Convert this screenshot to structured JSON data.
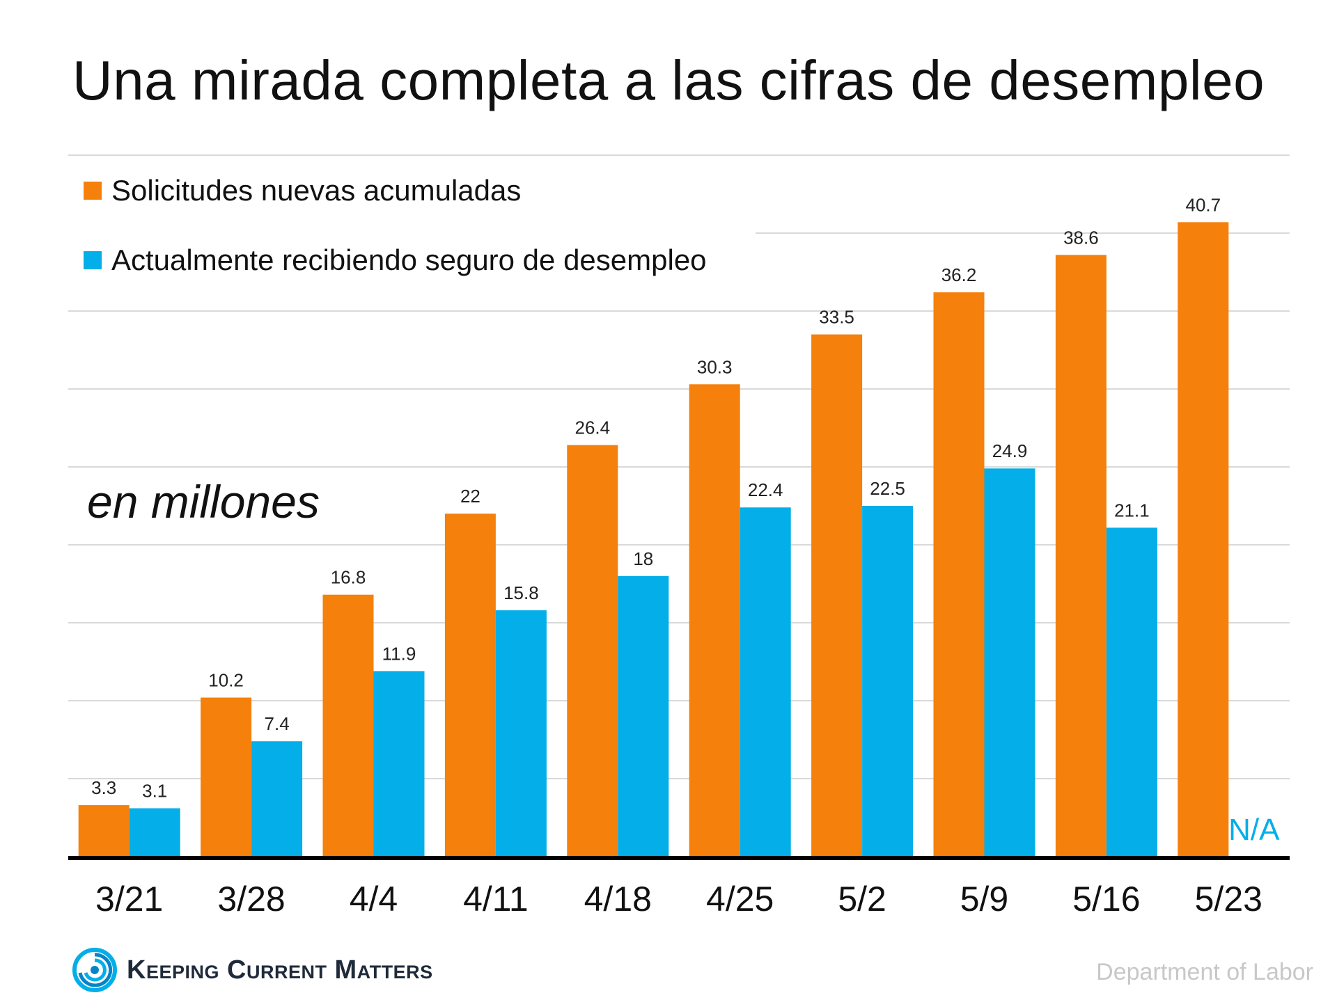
{
  "chart_data": {
    "type": "bar",
    "title": "Una mirada completa a las cifras de desempleo",
    "unit_label": "en millones",
    "categories": [
      "3/21",
      "3/28",
      "4/4",
      "4/11",
      "4/18",
      "4/25",
      "5/2",
      "5/9",
      "5/16",
      "5/23"
    ],
    "series": [
      {
        "name": "Solicitudes nuevas acumuladas",
        "color": "#f5800b",
        "values": [
          3.3,
          10.2,
          16.8,
          22,
          26.4,
          30.3,
          33.5,
          36.2,
          38.6,
          40.7
        ],
        "labels": [
          "3.3",
          "10.2",
          "16.8",
          "22",
          "26.4",
          "30.3",
          "33.5",
          "36.2",
          "38.6",
          "40.7"
        ]
      },
      {
        "name": "Actualmente recibiendo seguro de desempleo",
        "color": "#04aee9",
        "values": [
          3.1,
          7.4,
          11.9,
          15.8,
          18,
          22.4,
          22.5,
          24.9,
          21.1,
          null
        ],
        "labels": [
          "3.1",
          "7.4",
          "11.9",
          "15.8",
          "18",
          "22.4",
          "22.5",
          "24.9",
          "21.1",
          "N/A"
        ]
      }
    ],
    "ylim": [
      0,
      45
    ],
    "grid": true,
    "legend_position": "top-left"
  },
  "footer": {
    "logo_text": "Keeping Current Matters",
    "source": "Department of Labor"
  }
}
